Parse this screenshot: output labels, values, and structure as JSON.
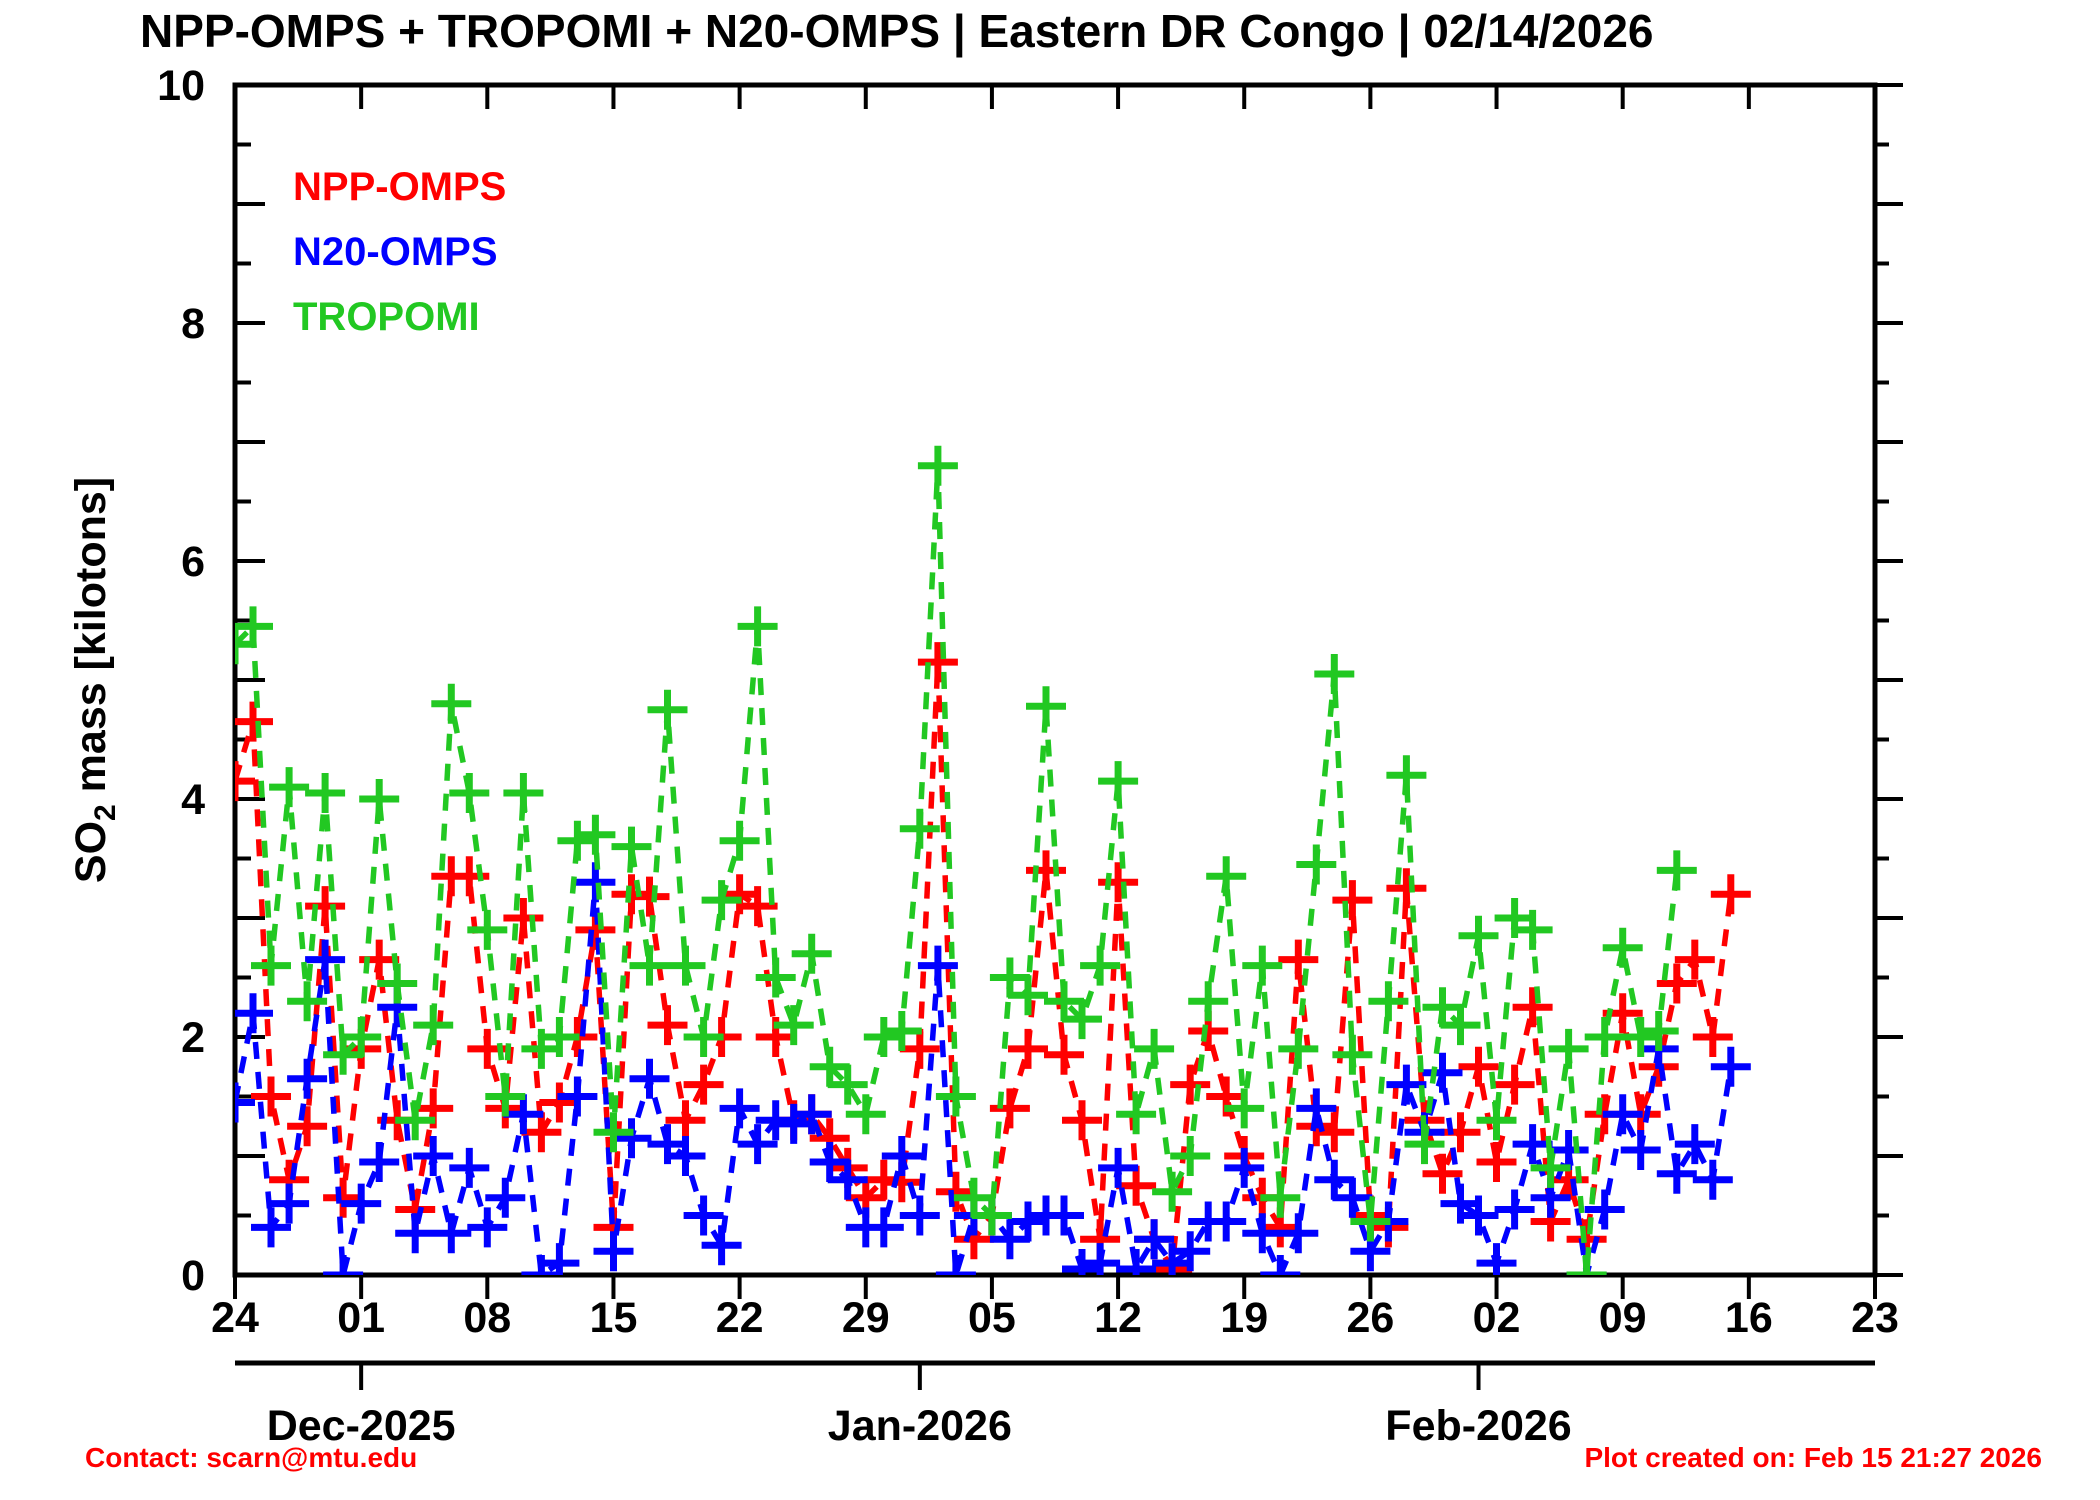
{
  "title": "NPP-OMPS + TROPOMI + N20-OMPS | Eastern DR Congo | 02/14/2026",
  "legend": [
    {
      "label": "NPP-OMPS",
      "color": "#ff0000"
    },
    {
      "label": "N20-OMPS",
      "color": "#0000ff"
    },
    {
      "label": "TROPOMI",
      "color": "#22c822"
    }
  ],
  "y_axis": {
    "label": {
      "pre": "SO",
      "sub": "2",
      "post": " mass [kilotons]"
    },
    "tick_labels": [
      "0",
      "2",
      "4",
      "6",
      "8",
      "10"
    ],
    "tick_values": [
      0,
      2,
      4,
      6,
      8,
      10
    ],
    "minor_step": 0.5,
    "range": [
      0,
      10
    ]
  },
  "x_axis": {
    "week_tick_labels": [
      "24",
      "01",
      "08",
      "15",
      "22",
      "29",
      "05",
      "12",
      "19",
      "26",
      "02",
      "09",
      "16",
      "23"
    ],
    "week_tick_day_index": [
      0,
      7,
      14,
      21,
      28,
      35,
      42,
      49,
      56,
      63,
      70,
      77,
      84,
      91
    ],
    "month_labels": [
      {
        "label": "Dec-2025",
        "day_index": 7
      },
      {
        "label": "Jan-2026",
        "day_index": 38
      },
      {
        "label": "Feb-2026",
        "day_index": 69
      }
    ],
    "range_days": 91
  },
  "footer": {
    "left": "Contact: scarn@mtu.edu",
    "right": "Plot created on: Feb 15 21:27 2026"
  },
  "chart_data": {
    "type": "line",
    "title": "NPP-OMPS + TROPOMI + N20-OMPS | Eastern DR Congo | 02/14/2026",
    "xlabel": "",
    "ylabel": "SO2 mass [kilotons]",
    "ylim": [
      0,
      10
    ],
    "grid": false,
    "legend_position": "top-left",
    "marker": "plus",
    "line_style": "dashed",
    "dates": [
      "2025-11-24",
      "2025-11-25",
      "2025-11-26",
      "2025-11-27",
      "2025-11-28",
      "2025-11-29",
      "2025-11-30",
      "2025-12-01",
      "2025-12-02",
      "2025-12-03",
      "2025-12-04",
      "2025-12-05",
      "2025-12-06",
      "2025-12-07",
      "2025-12-08",
      "2025-12-09",
      "2025-12-10",
      "2025-12-11",
      "2025-12-12",
      "2025-12-13",
      "2025-12-14",
      "2025-12-15",
      "2025-12-16",
      "2025-12-17",
      "2025-12-18",
      "2025-12-19",
      "2025-12-20",
      "2025-12-21",
      "2025-12-22",
      "2025-12-23",
      "2025-12-24",
      "2025-12-25",
      "2025-12-26",
      "2025-12-27",
      "2025-12-28",
      "2025-12-29",
      "2025-12-30",
      "2025-12-31",
      "2026-01-01",
      "2026-01-02",
      "2026-01-03",
      "2026-01-04",
      "2026-01-05",
      "2026-01-06",
      "2026-01-07",
      "2026-01-08",
      "2026-01-09",
      "2026-01-10",
      "2026-01-11",
      "2026-01-12",
      "2026-01-13",
      "2026-01-14",
      "2026-01-15",
      "2026-01-16",
      "2026-01-17",
      "2026-01-18",
      "2026-01-19",
      "2026-01-20",
      "2026-01-21",
      "2026-01-22",
      "2026-01-23",
      "2026-01-24",
      "2026-01-25",
      "2026-01-26",
      "2026-01-27",
      "2026-01-28",
      "2026-01-29",
      "2026-01-30",
      "2026-01-31",
      "2026-02-01",
      "2026-02-02",
      "2026-02-03",
      "2026-02-04",
      "2026-02-05",
      "2026-02-06",
      "2026-02-07",
      "2026-02-08",
      "2026-02-09",
      "2026-02-10",
      "2026-02-11",
      "2026-02-12",
      "2026-02-13",
      "2026-02-14",
      "2026-02-15"
    ],
    "series": [
      {
        "name": "NPP-OMPS",
        "color": "#ff0000",
        "values": [
          4.15,
          4.65,
          1.5,
          0.8,
          1.25,
          3.1,
          0.65,
          1.9,
          2.65,
          1.3,
          0.55,
          1.4,
          3.35,
          3.35,
          1.9,
          1.4,
          3.0,
          1.2,
          1.45,
          2.0,
          2.9,
          0.4,
          3.2,
          3.18,
          2.1,
          1.3,
          1.6,
          2.0,
          3.2,
          3.1,
          2.0,
          1.3,
          1.35,
          1.15,
          0.9,
          0.65,
          0.8,
          0.78,
          1.9,
          5.15,
          0.7,
          0.3,
          0.5,
          1.4,
          1.9,
          3.4,
          1.85,
          1.3,
          0.3,
          3.3,
          0.75,
          0.3,
          0.05,
          1.6,
          2.05,
          1.5,
          1.0,
          0.65,
          0.4,
          2.65,
          1.25,
          1.2,
          3.15,
          0.5,
          0.4,
          3.25,
          1.3,
          0.85,
          1.2,
          1.75,
          0.95,
          1.6,
          2.25,
          0.45,
          0.8,
          0.3,
          1.35,
          2.2,
          1.35,
          1.75,
          2.45,
          2.65,
          2.0,
          3.2
        ]
      },
      {
        "name": "N20-OMPS",
        "color": "#0000ff",
        "values": [
          1.45,
          2.2,
          0.4,
          0.6,
          1.65,
          2.65,
          0.0,
          0.6,
          0.95,
          2.25,
          0.35,
          1.0,
          0.35,
          0.9,
          0.4,
          0.65,
          1.35,
          0.0,
          0.1,
          1.5,
          3.3,
          0.2,
          1.15,
          1.65,
          1.1,
          1.0,
          0.5,
          0.25,
          1.4,
          1.1,
          1.3,
          1.27,
          1.35,
          0.95,
          0.8,
          0.4,
          0.4,
          1.0,
          0.5,
          2.6,
          0.0,
          0.5,
          0.5,
          0.3,
          0.45,
          0.5,
          0.5,
          0.05,
          0.1,
          0.9,
          0.05,
          0.3,
          0.1,
          0.2,
          0.45,
          0.45,
          0.9,
          0.35,
          0.0,
          0.35,
          1.4,
          0.8,
          0.65,
          0.2,
          0.45,
          1.6,
          1.2,
          1.7,
          0.6,
          0.5,
          0.1,
          0.55,
          1.1,
          0.65,
          1.05,
          0.0,
          0.55,
          1.35,
          1.05,
          1.9,
          0.85,
          1.1,
          0.8,
          1.75
        ]
      },
      {
        "name": "TROPOMI",
        "color": "#22c822",
        "values": [
          5.3,
          5.45,
          2.6,
          4.1,
          2.3,
          4.05,
          1.85,
          2.0,
          4.0,
          2.45,
          1.3,
          2.1,
          4.8,
          4.05,
          2.9,
          1.5,
          4.05,
          1.9,
          2.0,
          3.65,
          3.7,
          1.2,
          3.6,
          2.6,
          4.75,
          2.6,
          2.0,
          3.15,
          3.65,
          5.45,
          2.5,
          2.1,
          2.7,
          1.75,
          1.6,
          1.35,
          2.0,
          2.05,
          3.75,
          6.8,
          1.5,
          0.65,
          0.5,
          2.5,
          2.35,
          4.78,
          2.3,
          2.15,
          2.6,
          4.15,
          1.35,
          1.9,
          0.7,
          1.0,
          2.3,
          3.35,
          1.4,
          2.6,
          0.65,
          1.9,
          3.45,
          5.05,
          1.85,
          0.45,
          2.3,
          4.2,
          1.1,
          2.25,
          2.1,
          2.85,
          1.3,
          3.0,
          2.9,
          0.9,
          1.9,
          0.0,
          2.0,
          2.75,
          2.0,
          2.05,
          3.4,
          null,
          null,
          null
        ]
      }
    ]
  }
}
